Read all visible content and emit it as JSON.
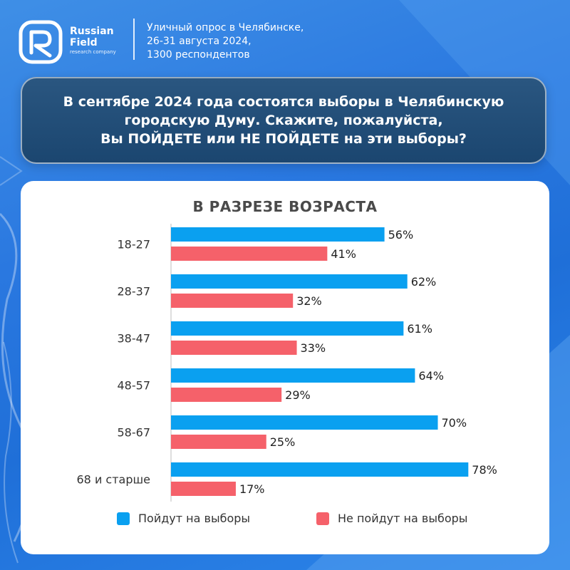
{
  "header": {
    "brand_line1": "Russian",
    "brand_line2": "Field",
    "brand_line3": "research company",
    "survey_lines": [
      "Уличный опрос в Челябинске,",
      "26-31 августа 2024,",
      "1300 респондентов"
    ]
  },
  "question": {
    "lines": [
      "В сентябре 2024 года состоятся выборы в Челябинскую",
      "городскую Думу. Скажите, пожалуйста,",
      "Вы ПОЙДЕТЕ или НЕ ПОЙДЕТЕ на эти выборы?"
    ]
  },
  "colors": {
    "go": "#0aa0f0",
    "not_go": "#f5616a",
    "question_bg": "#1f4a73"
  },
  "chart_data": {
    "type": "bar",
    "orientation": "horizontal",
    "title": "В РАЗРЕЗЕ ВОЗРАСТА",
    "categories": [
      "18-27",
      "28-37",
      "38-47",
      "48-57",
      "58-67",
      "68 и старше"
    ],
    "series": [
      {
        "name": "Пойдут на выборы",
        "values": [
          56,
          62,
          61,
          64,
          70,
          78
        ],
        "color": "#0aa0f0"
      },
      {
        "name": "Не пойдут на выборы",
        "values": [
          41,
          32,
          33,
          29,
          25,
          17
        ],
        "color": "#f5616a"
      }
    ],
    "value_suffix": "%",
    "xlim": [
      0,
      100
    ],
    "grid": false,
    "legend_position": "bottom"
  }
}
